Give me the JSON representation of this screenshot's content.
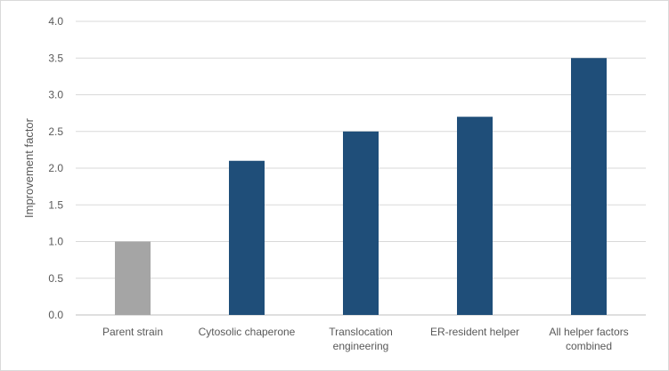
{
  "chart_data": {
    "type": "bar",
    "title": "",
    "xlabel": "",
    "ylabel": "Improvement factor",
    "ylim": [
      0,
      4.0
    ],
    "yticks": [
      "0.0",
      "0.5",
      "1.0",
      "1.5",
      "2.0",
      "2.5",
      "3.0",
      "3.5",
      "4.0"
    ],
    "grid": true,
    "legend": "none",
    "categories": [
      [
        "Parent strain"
      ],
      [
        "Cytosolic chaperone"
      ],
      [
        "Translocation",
        "engineering"
      ],
      [
        "ER-resident helper"
      ],
      [
        "All helper factors",
        "combined"
      ]
    ],
    "values": [
      1.0,
      2.1,
      2.5,
      2.7,
      3.5
    ],
    "colors": [
      "#a5a5a5",
      "#1f4e79",
      "#1f4e79",
      "#1f4e79",
      "#1f4e79"
    ]
  }
}
